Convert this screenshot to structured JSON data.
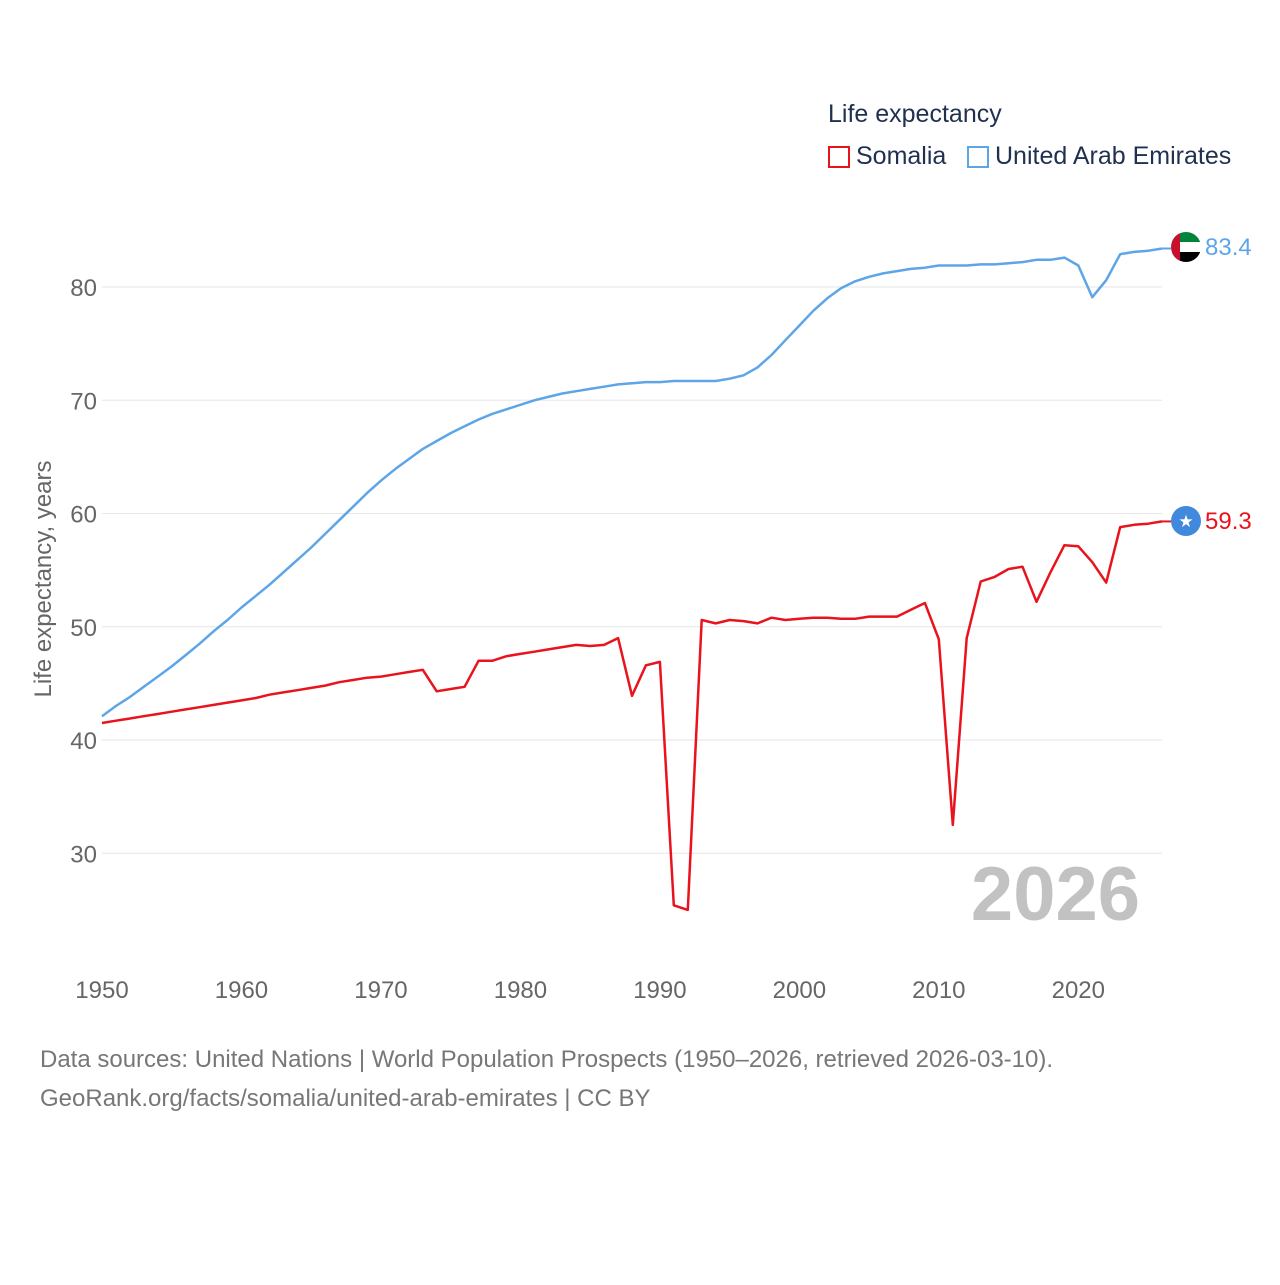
{
  "legend": {
    "title": "Life expectancy",
    "items": [
      {
        "label": "Somalia",
        "color": "#e8131c"
      },
      {
        "label": "United Arab Emirates",
        "color": "#5ea5e8"
      }
    ]
  },
  "source": {
    "line1": "Data sources: United Nations | World Population Prospects (1950–2026, retrieved 2026-03-10).",
    "line2": "GeoRank.org/facts/somalia/united-arab-emirates | CC BY"
  },
  "colors": {
    "somalia": "#e8131c",
    "uae": "#5ea5e8",
    "grid": "#e6e6e6",
    "tick": "#666666",
    "watermark": "#c2c2c2"
  },
  "chart_data": {
    "type": "line",
    "title": "Life expectancy",
    "xlabel": "",
    "ylabel": "Life expectancy, years",
    "xlim": [
      1950,
      2026
    ],
    "ylim": [
      21,
      90
    ],
    "xticks": [
      1950,
      1960,
      1970,
      1980,
      1990,
      2000,
      2010,
      2020
    ],
    "yticks": [
      30,
      40,
      50,
      60,
      70,
      80
    ],
    "year_label": "2026",
    "x": [
      1950,
      1951,
      1952,
      1953,
      1954,
      1955,
      1956,
      1957,
      1958,
      1959,
      1960,
      1961,
      1962,
      1963,
      1964,
      1965,
      1966,
      1967,
      1968,
      1969,
      1970,
      1971,
      1972,
      1973,
      1974,
      1975,
      1976,
      1977,
      1978,
      1979,
      1980,
      1981,
      1982,
      1983,
      1984,
      1985,
      1986,
      1987,
      1988,
      1989,
      1990,
      1991,
      1992,
      1993,
      1994,
      1995,
      1996,
      1997,
      1998,
      1999,
      2000,
      2001,
      2002,
      2003,
      2004,
      2005,
      2006,
      2007,
      2008,
      2009,
      2010,
      2011,
      2012,
      2013,
      2014,
      2015,
      2016,
      2017,
      2018,
      2019,
      2020,
      2021,
      2022,
      2023,
      2024,
      2025,
      2026
    ],
    "series": [
      {
        "name": "Somalia",
        "end_label": "59.3",
        "values": [
          41.5,
          41.7,
          41.9,
          42.1,
          42.3,
          42.5,
          42.7,
          42.9,
          43.1,
          43.3,
          43.5,
          43.7,
          44.0,
          44.2,
          44.4,
          44.6,
          44.8,
          45.1,
          45.3,
          45.5,
          45.6,
          45.8,
          46.0,
          46.2,
          44.3,
          44.5,
          44.7,
          47.0,
          47.0,
          47.4,
          47.6,
          47.8,
          48.0,
          48.2,
          48.4,
          48.3,
          48.4,
          49.0,
          43.9,
          46.6,
          46.9,
          25.4,
          25.0,
          50.6,
          50.3,
          50.6,
          50.5,
          50.3,
          50.8,
          50.6,
          50.7,
          50.8,
          50.8,
          50.7,
          50.7,
          50.9,
          50.9,
          50.9,
          51.5,
          52.1,
          48.9,
          32.5,
          49.0,
          54.0,
          54.4,
          55.1,
          55.3,
          52.2,
          54.8,
          57.2,
          57.1,
          55.7,
          53.9,
          58.8,
          59.0,
          59.1,
          59.3
        ]
      },
      {
        "name": "United Arab Emirates",
        "end_label": "83.4",
        "values": [
          42.1,
          43.0,
          43.8,
          44.7,
          45.6,
          46.5,
          47.5,
          48.5,
          49.6,
          50.6,
          51.7,
          52.7,
          53.7,
          54.8,
          55.9,
          57.0,
          58.2,
          59.4,
          60.6,
          61.8,
          62.9,
          63.9,
          64.8,
          65.7,
          66.4,
          67.1,
          67.7,
          68.3,
          68.8,
          69.2,
          69.6,
          70.0,
          70.3,
          70.6,
          70.8,
          71.0,
          71.2,
          71.4,
          71.5,
          71.6,
          71.6,
          71.7,
          71.7,
          71.7,
          71.7,
          71.9,
          72.2,
          72.9,
          74.0,
          75.3,
          76.6,
          77.9,
          79.0,
          79.9,
          80.5,
          80.9,
          81.2,
          81.4,
          81.6,
          81.7,
          81.9,
          81.9,
          81.9,
          82.0,
          82.0,
          82.1,
          82.2,
          82.4,
          82.4,
          82.6,
          81.9,
          79.1,
          80.6,
          82.9,
          83.1,
          83.2,
          83.4
        ]
      }
    ]
  }
}
